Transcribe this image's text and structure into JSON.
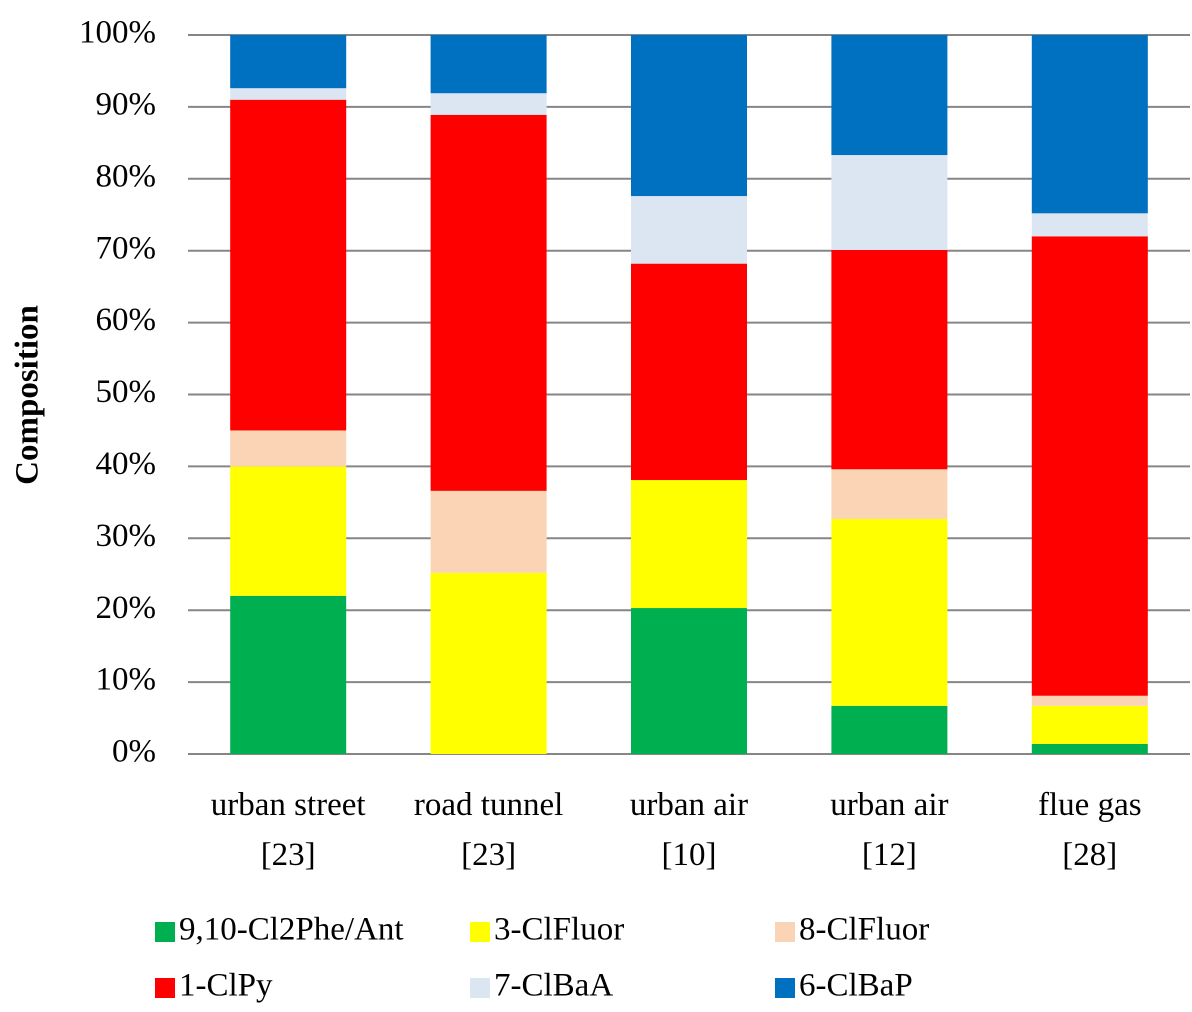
{
  "chart_data": {
    "type": "stacked_bar_100",
    "y_label": "Composition",
    "categories": [
      "urban street\n[23]",
      "road tunnel\n[23]",
      "urban air\n[10]",
      "urban air\n[12]",
      "flue gas\n[28]"
    ],
    "series": [
      {
        "name": "9,10-Cl2Phe/Ant",
        "color": "#00b050",
        "values": [
          22,
          0,
          20.3,
          6.7,
          1.4
        ]
      },
      {
        "name": "3-ClFluor",
        "color": "#ffff00",
        "values": [
          18,
          25.2,
          17.8,
          26,
          5.3
        ]
      },
      {
        "name": "8-ClFluor",
        "color": "#fad4b4",
        "values": [
          5,
          11.4,
          0,
          6.9,
          1.4
        ]
      },
      {
        "name": "1-ClPy",
        "color": "#ff0000",
        "values": [
          46,
          52.3,
          30.1,
          30.5,
          63.9
        ]
      },
      {
        "name": "7-ClBaA",
        "color": "#dce6f2",
        "values": [
          1.6,
          3,
          9.4,
          13.2,
          3.2
        ]
      },
      {
        "name": "6-ClBaP",
        "color": "#0070c0",
        "values": [
          7.4,
          8.1,
          22.4,
          16.7,
          24.8
        ]
      }
    ],
    "ylim": [
      0,
      100
    ],
    "yticks": [
      {
        "value": 0,
        "label": "0%"
      },
      {
        "value": 10,
        "label": "10%"
      },
      {
        "value": 20,
        "label": "20%"
      },
      {
        "value": 30,
        "label": "30%"
      },
      {
        "value": 40,
        "label": "40%"
      },
      {
        "value": 50,
        "label": "50%"
      },
      {
        "value": 60,
        "label": "60%"
      },
      {
        "value": 70,
        "label": "70%"
      },
      {
        "value": 80,
        "label": "80%"
      },
      {
        "value": 90,
        "label": "90%"
      },
      {
        "value": 100,
        "label": "100%"
      }
    ],
    "grid": true
  }
}
